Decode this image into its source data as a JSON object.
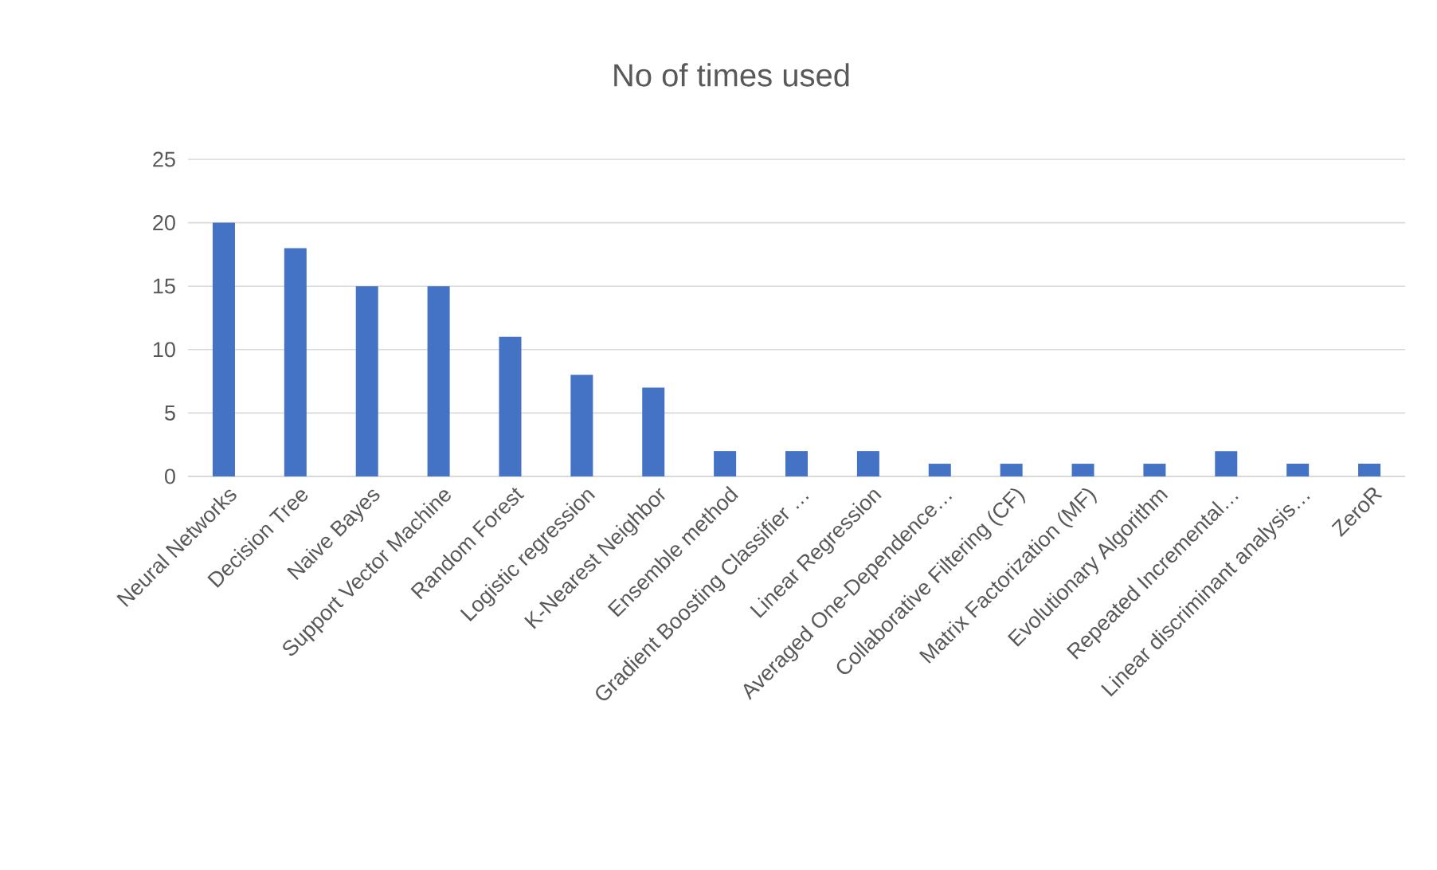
{
  "chart_data": {
    "type": "bar",
    "title": "No of times used",
    "categories": [
      "Neural Networks",
      "Decision Tree",
      "Naive Bayes",
      "Support Vector Machine",
      "Random Forest",
      "Logistic regression",
      "K-Nearest Neighbor",
      "Ensemble method",
      "Gradient Boosting Classifier …",
      "Linear Regression",
      "Averaged One-Dependence…",
      "Collaborative Filtering (CF)",
      "Matrix Factorization (MF)",
      "Evolutionary Algorithm",
      "Repeated Incremental…",
      "Linear discriminant analysis…",
      "ZeroR"
    ],
    "values": [
      20,
      18,
      15,
      15,
      11,
      8,
      7,
      2,
      2,
      2,
      1,
      1,
      1,
      1,
      2,
      1,
      1
    ],
    "color": "#4472c4",
    "ylim": [
      0,
      25
    ],
    "yticks": [
      0,
      5,
      10,
      15,
      20,
      25
    ],
    "grid": "y"
  }
}
